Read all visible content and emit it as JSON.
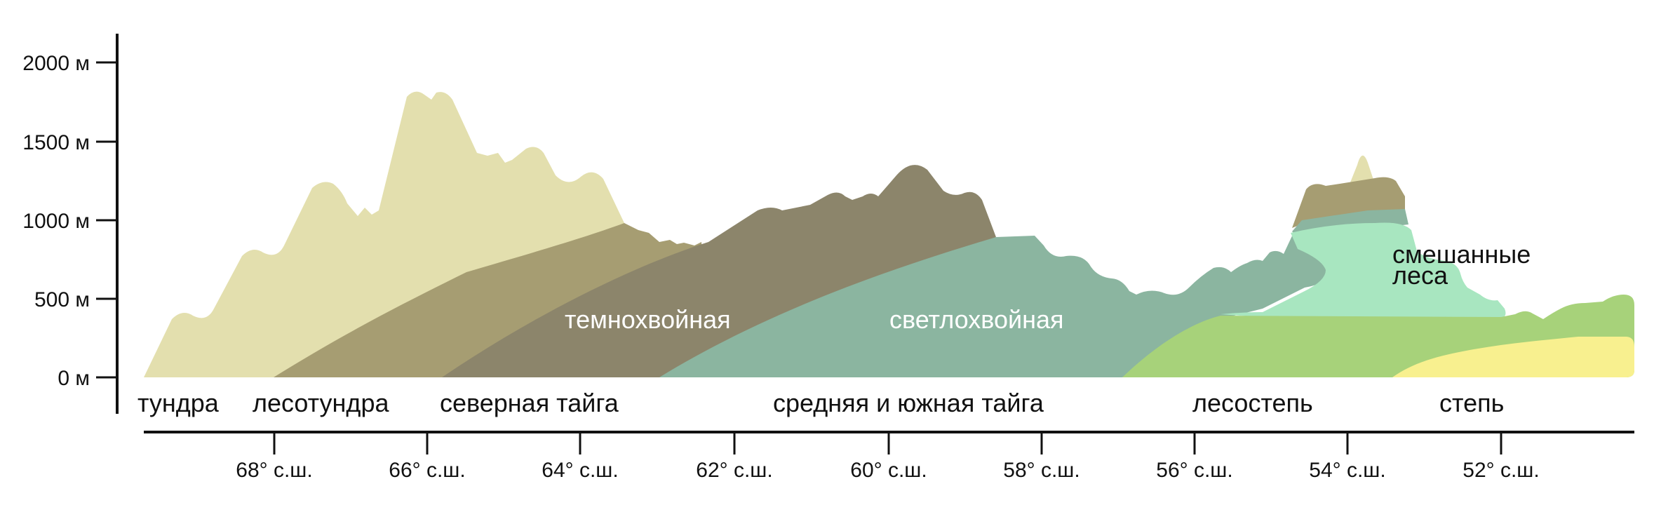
{
  "chart_data": {
    "type": "area",
    "y_axis": {
      "unit": "м",
      "ticks": [
        {
          "value": 0,
          "label": "0 м"
        },
        {
          "value": 500,
          "label": "500 м"
        },
        {
          "value": 1000,
          "label": "1000 м"
        },
        {
          "value": 1500,
          "label": "1500 м"
        },
        {
          "value": 2000,
          "label": "2000 м"
        }
      ]
    },
    "x_axis": {
      "ticks": [
        {
          "value": 68,
          "label": "68° с.ш."
        },
        {
          "value": 66,
          "label": "66° с.ш."
        },
        {
          "value": 64,
          "label": "64° с.ш."
        },
        {
          "value": 62,
          "label": "62° с.ш."
        },
        {
          "value": 60,
          "label": "60° с.ш."
        },
        {
          "value": 58,
          "label": "58° с.ш."
        },
        {
          "value": 56,
          "label": "56° с.ш."
        },
        {
          "value": 54,
          "label": "54° с.ш."
        },
        {
          "value": 52,
          "label": "52° с.ш."
        }
      ]
    },
    "zones": [
      {
        "label": "тундра"
      },
      {
        "label": "лесотундра"
      },
      {
        "label": "северная тайга"
      },
      {
        "label": "средняя и южная тайга"
      },
      {
        "label": "лесостепь"
      },
      {
        "label": "степь"
      }
    ],
    "vegetation_labels": [
      {
        "label": "темнохвойная"
      },
      {
        "label": "светлохвойная"
      },
      {
        "label_line1": "смешанные",
        "label_line2": "леса"
      }
    ],
    "colors": {
      "tundra": "#e3dfae",
      "forest_tundra": "#a69d72",
      "dark_coniferous": "#8c856b",
      "light_coniferous": "#8bb5a0",
      "mixed_forest": "#a8e6c0",
      "forest_steppe": "#a7d27a",
      "steppe": "#f8f08f",
      "axis": "#111111"
    }
  }
}
